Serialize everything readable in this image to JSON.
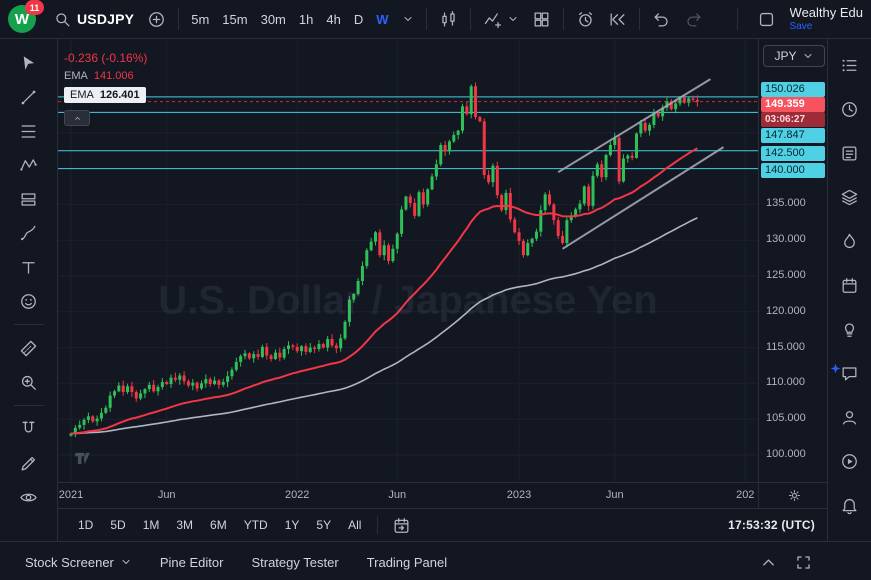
{
  "topbar": {
    "logo_letter": "W",
    "badge": "11",
    "symbol": "USDJPY",
    "timeframes": [
      "5m",
      "15m",
      "30m",
      "1h",
      "4h",
      "D",
      "W"
    ],
    "active_timeframe": "W",
    "layout_name": "Wealthy Edu",
    "save_label": "Save",
    "icons": [
      "search",
      "plus-circle",
      "chevron-down",
      "candles",
      "indicators",
      "grid",
      "alarm",
      "replay",
      "undo",
      "redo",
      "square"
    ]
  },
  "left_toolbar": {
    "icons": [
      "cursor",
      "trend-line",
      "fib",
      "xabcd",
      "position",
      "brush",
      "text",
      "emoji",
      "measure",
      "zoom",
      "magnet",
      "pencil",
      "eye"
    ]
  },
  "sidebar": {
    "icons": [
      "watchlist",
      "alerts-clock",
      "data-window",
      "object-tree",
      "flame",
      "calendar",
      "bulb",
      "chat",
      "community",
      "streams-play",
      "bell"
    ],
    "sparkle_icon": "sparkle"
  },
  "legend": {
    "change": "-0.236 (-0.16%)",
    "ema1_label": "EMA",
    "ema1_value": "141.006",
    "ema2_label": "EMA",
    "ema2_value": "126.401"
  },
  "watermark": "U.S. Dollar / Japanese Yen",
  "price_scale": {
    "currency": "JPY",
    "levels": [
      {
        "value": "150.026",
        "price": 150.026
      },
      {
        "value": "147.847",
        "price": 147.847
      },
      {
        "value": "142.500",
        "price": 142.5
      },
      {
        "value": "140.000",
        "price": 140.0
      }
    ],
    "last": {
      "value": "149.359",
      "countdown": "03:06:27",
      "price": 149.359
    },
    "ticks": [
      "135.000",
      "130.000",
      "125.000",
      "120.000",
      "115.000",
      "110.000",
      "105.000",
      "100.000"
    ]
  },
  "range_bar": {
    "ranges": [
      "1D",
      "5D",
      "1M",
      "3M",
      "6M",
      "YTD",
      "1Y",
      "5Y",
      "All"
    ],
    "clock": "17:53:32 (UTC)"
  },
  "bottom_panel": {
    "tabs": [
      "Stock Screener",
      "Pine Editor",
      "Strategy Tester",
      "Trading Panel"
    ]
  },
  "colors": {
    "accent": "#2962ff",
    "up": "#2fc157",
    "down": "#f23645",
    "ema_fast": "#f23645",
    "ema_slow": "#b2b5be",
    "level_line": "#3fd0e4",
    "label_bg": "#4fd0e4",
    "last_bg": "#f7525f",
    "countdown_bg": "#9e2b38",
    "channel": "#a3a8b4",
    "grid": "#1b202c"
  },
  "chart_data": {
    "type": "candlestick",
    "symbol": "USDJPY",
    "timeframe": "W",
    "first_open": 102.7,
    "closes": [
      103.0,
      103.8,
      104.2,
      104.9,
      105.4,
      104.7,
      105.1,
      105.9,
      106.6,
      108.3,
      108.9,
      109.7,
      108.8,
      109.6,
      108.8,
      107.9,
      108.6,
      109.2,
      109.8,
      108.9,
      109.5,
      110.2,
      109.9,
      110.8,
      110.5,
      111.1,
      110.3,
      109.7,
      110.1,
      109.3,
      110.0,
      110.6,
      109.9,
      110.4,
      109.8,
      110.2,
      111.0,
      111.9,
      113.0,
      113.8,
      114.2,
      113.5,
      114.1,
      113.7,
      115.1,
      113.9,
      113.4,
      114.3,
      113.6,
      114.8,
      115.3,
      115.1,
      114.5,
      115.2,
      114.4,
      115.0,
      114.8,
      115.5,
      115.0,
      116.2,
      115.3,
      114.9,
      116.3,
      118.6,
      121.7,
      122.5,
      124.3,
      126.4,
      128.6,
      129.8,
      131.1,
      127.9,
      129.3,
      127.1,
      128.8,
      130.9,
      134.3,
      136.1,
      135.2,
      133.4,
      136.7,
      135.0,
      137.1,
      138.9,
      140.6,
      143.3,
      142.4,
      143.8,
      144.7,
      145.3,
      148.7,
      147.6,
      151.5,
      147.2,
      146.6,
      139.1,
      138.1,
      140.4,
      136.3,
      134.2,
      136.6,
      132.9,
      131.1,
      129.9,
      127.9,
      129.6,
      130.2,
      131.2,
      134.2,
      136.4,
      135.0,
      132.8,
      130.6,
      129.6,
      132.8,
      133.3,
      134.3,
      135.1,
      137.5,
      134.8,
      139.0,
      140.6,
      138.8,
      141.9,
      143.3,
      144.3,
      138.2,
      141.4,
      141.8,
      141.5,
      144.9,
      146.4,
      145.3,
      146.1,
      147.8,
      147.3,
      148.5,
      149.4,
      148.3,
      149.1,
      149.9,
      149.2,
      149.8,
      149.595,
      149.359
    ],
    "last_price": 149.359,
    "price_range": [
      100,
      152
    ],
    "levels": [
      150.026,
      147.847,
      142.5,
      140.0
    ],
    "time_ticks": [
      {
        "label": "2021",
        "week": 0
      },
      {
        "label": "Jun",
        "week": 22
      },
      {
        "label": "2022",
        "week": 52
      },
      {
        "label": "Jun",
        "week": 75
      },
      {
        "label": "2023",
        "week": 103
      },
      {
        "label": "Jun",
        "week": 125
      },
      {
        "label": "202",
        "week": 155
      }
    ],
    "channel": {
      "upper": [
        [
          112,
          139.5
        ],
        [
          147,
          152.5
        ]
      ],
      "lower": [
        [
          113,
          128.8
        ],
        [
          150,
          143.0
        ]
      ]
    },
    "emas": [
      {
        "label_value": "141.006",
        "period": 40
      },
      {
        "label_value": "126.401",
        "period": 110
      }
    ]
  }
}
